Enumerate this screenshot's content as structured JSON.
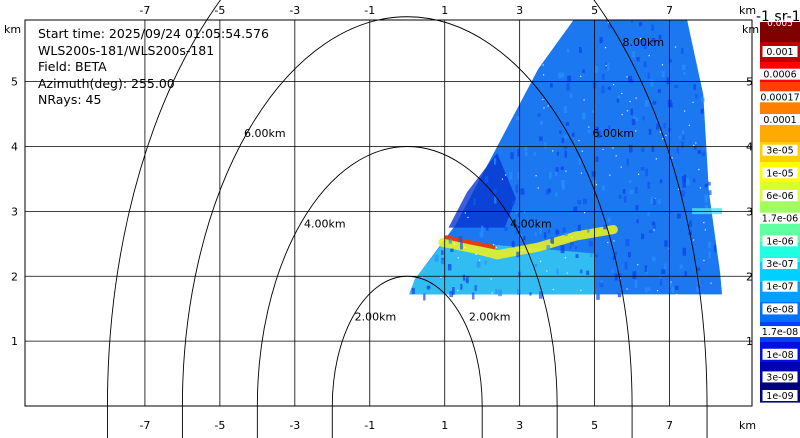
{
  "info": {
    "start_time": "Start time: 2025/09/24 01:05:54.576",
    "instrument": "WLS200s-181/WLS200s-181",
    "field": "Field: BETA",
    "azimuth": "Azimuth(deg): 255.00",
    "nrays": "NRays: 45"
  },
  "chart_data": {
    "type": "heatmap",
    "x_unit_label": "km",
    "y_unit_label": "km",
    "xlim": [
      -10.2,
      9.2
    ],
    "ylim": [
      0,
      5.95
    ],
    "x_ticks": [
      -7,
      -5,
      -3,
      -1,
      1,
      3,
      5,
      7
    ],
    "x_tick_labels": [
      "-7",
      "-5",
      "-3",
      "-1",
      "1",
      "3",
      "5",
      "7"
    ],
    "y_ticks": [
      1,
      2,
      3,
      4,
      5
    ],
    "y_tick_labels": [
      "1",
      "2",
      "3",
      "4",
      "5"
    ],
    "range_rings": [
      {
        "radius": 2,
        "label": "2.00km"
      },
      {
        "radius": 4,
        "label": "4.00km"
      },
      {
        "radius": 6,
        "label": "6.00km"
      },
      {
        "radius": 8,
        "label": "8.00km"
      }
    ],
    "radar_origin": [
      0,
      0
    ],
    "colorbar": {
      "title": "-1 sr-1",
      "top_label": "0.005",
      "labels": [
        "0.001",
        "0.0006",
        "0.00017",
        "0.0001",
        "3e-05",
        "1e-05",
        "6e-06",
        "1.7e-06",
        "1e-06",
        "3e-07",
        "1e-07",
        "6e-08",
        "1.7e-08",
        "1e-08",
        "3e-09",
        "1e-09"
      ],
      "colors": [
        "#800000",
        "#c00000",
        "#ff0000",
        "#ff4000",
        "#ff8000",
        "#ffaa00",
        "#ffd000",
        "#ffff00",
        "#d8ff30",
        "#a0ff60",
        "#60ffa0",
        "#20ffe0",
        "#00d0ff",
        "#00a0ff",
        "#0070ff",
        "#0040ff",
        "#0010e0",
        "#0000b0",
        "#000080"
      ]
    }
  }
}
